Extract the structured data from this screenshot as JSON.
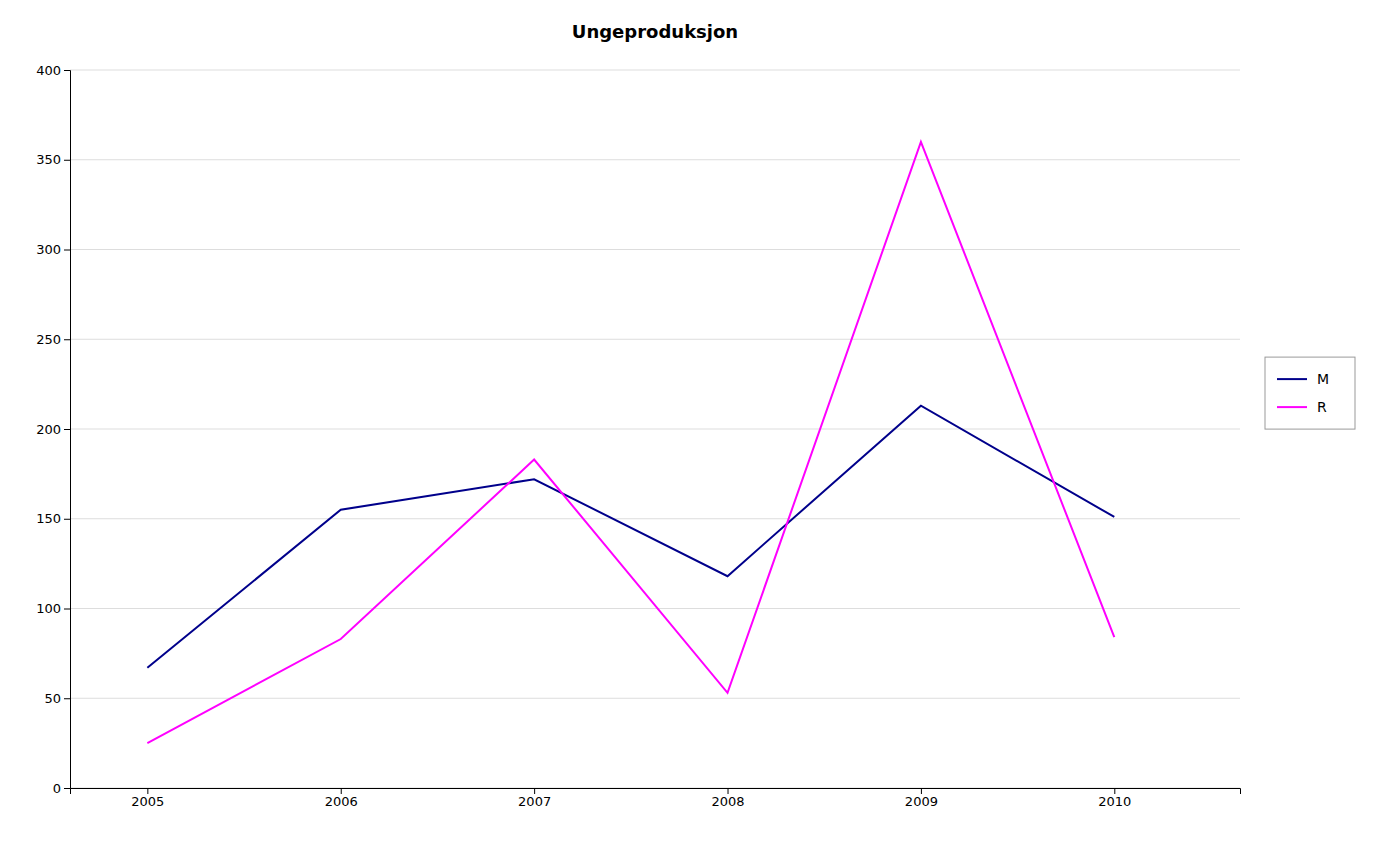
{
  "chart_data": {
    "type": "line",
    "title": "Ungeproduksjon",
    "x": [
      2005,
      2006,
      2007,
      2008,
      2009,
      2010
    ],
    "series": [
      {
        "name": "M",
        "color": "#00008B",
        "values": [
          67,
          155,
          172,
          118,
          213,
          151
        ]
      },
      {
        "name": "R",
        "color": "#FF00FF",
        "values": [
          25,
          83,
          183,
          53,
          360,
          84
        ]
      }
    ],
    "xlim": [
      2004.6,
      2010.65
    ],
    "xticks": [
      2005,
      2006,
      2007,
      2008,
      2009,
      2010
    ],
    "ylim": [
      0,
      400
    ],
    "yticks": [
      0,
      50,
      100,
      150,
      200,
      250,
      300,
      350,
      400
    ],
    "grid": true,
    "legend": "right"
  }
}
